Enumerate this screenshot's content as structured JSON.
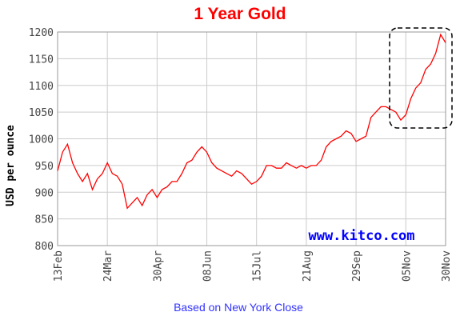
{
  "chart_data": {
    "type": "line",
    "title": "1 Year Gold",
    "ylabel": "USD per ounce",
    "annotation": "www.kitco.com",
    "footnote": "Based on New York Close",
    "categories": [
      "13Feb",
      null,
      null,
      null,
      null,
      null,
      null,
      null,
      null,
      null,
      "24Mar",
      null,
      null,
      null,
      null,
      null,
      null,
      null,
      null,
      null,
      "30Apr",
      null,
      null,
      null,
      null,
      null,
      null,
      null,
      null,
      null,
      "08Jun",
      null,
      null,
      null,
      null,
      null,
      null,
      null,
      null,
      null,
      "15Jul",
      null,
      null,
      null,
      null,
      null,
      null,
      null,
      null,
      null,
      "21Aug",
      null,
      null,
      null,
      null,
      null,
      null,
      null,
      null,
      null,
      "29Sep",
      null,
      null,
      null,
      null,
      null,
      null,
      null,
      null,
      null,
      "05Nov",
      null,
      null,
      null,
      null,
      null,
      null,
      null,
      "30Nov"
    ],
    "series": [
      {
        "name": "Gold",
        "color": "#ff0000",
        "values": [
          940,
          975,
          990,
          955,
          935,
          920,
          935,
          905,
          925,
          935,
          955,
          935,
          930,
          915,
          870,
          880,
          890,
          875,
          895,
          905,
          890,
          905,
          910,
          920,
          920,
          935,
          955,
          960,
          975,
          985,
          975,
          955,
          945,
          940,
          935,
          930,
          940,
          935,
          925,
          915,
          920,
          930,
          950,
          950,
          945,
          945,
          955,
          950,
          945,
          950,
          945,
          950,
          950,
          960,
          985,
          995,
          1000,
          1005,
          1015,
          1010,
          995,
          1000,
          1005,
          1040,
          1050,
          1060,
          1060,
          1055,
          1050,
          1035,
          1045,
          1075,
          1095,
          1105,
          1130,
          1140,
          1160,
          1195,
          1180
        ]
      }
    ],
    "ylim": [
      800,
      1200
    ],
    "yticks": [
      800,
      850,
      900,
      950,
      1000,
      1050,
      1100,
      1150,
      1200
    ],
    "grid": true
  }
}
